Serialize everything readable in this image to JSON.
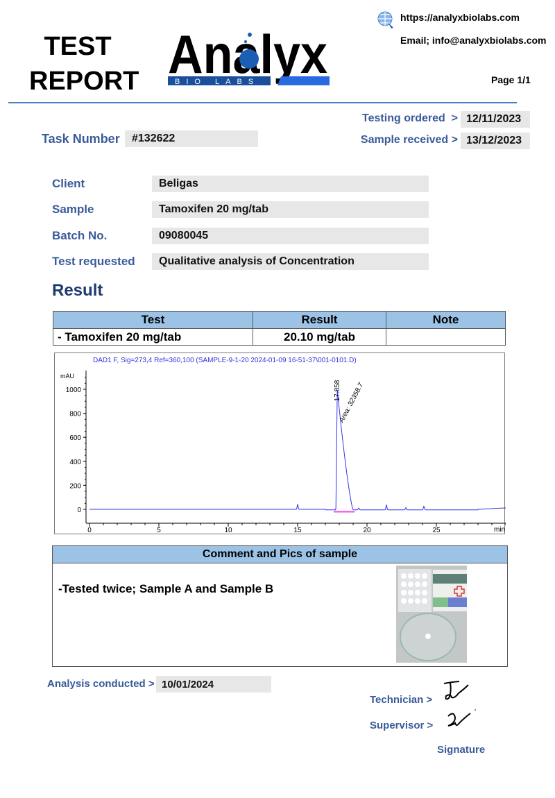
{
  "header": {
    "title_line1": "TEST",
    "title_line2": "REPORT",
    "logo_text": "Analyx",
    "logo_subtext": "BIO LABS",
    "website": "https://analyxbiolabs.com",
    "email": "Email; info@analyxbiolabs.com",
    "page": "Page 1/1",
    "icons": [
      "globe-click-icon"
    ],
    "rule_color": "#4a7fc1"
  },
  "meta": {
    "task_label": "Task Number",
    "task_value": "#132622",
    "ordered_label": "Testing ordered  >",
    "ordered_value": "12/11/2023",
    "received_label": "Sample received >",
    "received_value": "13/12/2023"
  },
  "info": [
    {
      "label": "Client",
      "value": "Beligas"
    },
    {
      "label": "Sample",
      "value": "Tamoxifen 20 mg/tab"
    },
    {
      "label": "Batch No.",
      "value": "09080045"
    },
    {
      "label": "Test requested",
      "value": "Qualitative analysis of Concentration"
    }
  ],
  "result": {
    "heading": "Result",
    "columns": [
      "Test",
      "Result",
      "Note"
    ],
    "rows": [
      [
        "- Tamoxifen 20 mg/tab",
        "20.10 mg/tab",
        ""
      ]
    ]
  },
  "chart_data": {
    "type": "line",
    "title": "DAD1 F, Sig=273,4 Ref=360,100 (SAMPLE-9-1-20 2024-01-09 16-51-37\\001-0101.D)",
    "ylabel": "mAU",
    "xlabel": "min",
    "xlim": [
      0,
      30
    ],
    "ylim": [
      -60,
      1100
    ],
    "xticks": [
      0,
      5,
      10,
      15,
      20,
      25
    ],
    "yticks": [
      0,
      200,
      400,
      600,
      800,
      1000
    ],
    "peaks": [
      {
        "rt": 15.0,
        "height": 40
      },
      {
        "rt": 17.858,
        "height": 1000,
        "label": "17.858",
        "area_label": "Area: 32358.7"
      },
      {
        "rt": 19.4,
        "height": 15
      },
      {
        "rt": 21.4,
        "height": 40
      },
      {
        "rt": 22.8,
        "height": 18
      },
      {
        "rt": 24.1,
        "height": 30
      }
    ],
    "line_color": "#3333ee",
    "baseline_color": "#ee44ee"
  },
  "comment": {
    "heading": "Comment and Pics of sample",
    "text": "-Tested twice; Sample A and Sample B"
  },
  "footer": {
    "analysis_label": "Analysis conducted >",
    "analysis_value": "10/01/2024",
    "technician_label": "Technician >",
    "supervisor_label": "Supervisor >",
    "signature_label": "Signature"
  }
}
